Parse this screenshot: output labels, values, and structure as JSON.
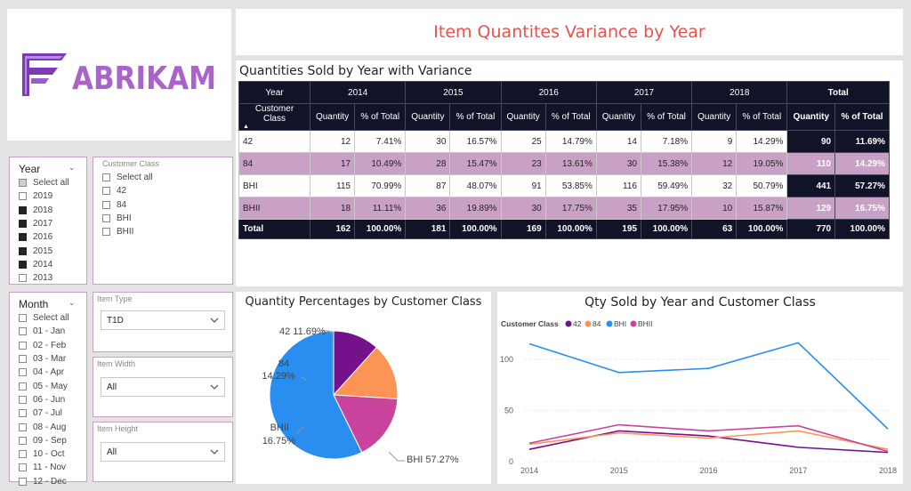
{
  "logo": {
    "text": "ABRIKAM",
    "color": "#a864c8"
  },
  "report_title": "Item Quantites Variance by Year",
  "matrix": {
    "title": "Quantities  Sold by Year with Variance",
    "year_header": "Year",
    "row_header": "Customer Class",
    "years": [
      "2014",
      "2015",
      "2016",
      "2017",
      "2018"
    ],
    "total_header": "Total",
    "qty_header": "Quantity",
    "pct_header": "% of Total",
    "rows": [
      {
        "label": "42",
        "cells": [
          "12",
          "7.41%",
          "30",
          "16.57%",
          "25",
          "14.79%",
          "14",
          "7.18%",
          "9",
          "14.29%"
        ],
        "total_qty": "90",
        "total_pct": "11.69%"
      },
      {
        "label": "84",
        "cells": [
          "17",
          "10.49%",
          "28",
          "15.47%",
          "23",
          "13.61%",
          "30",
          "15.38%",
          "12",
          "19.05%"
        ],
        "total_qty": "110",
        "total_pct": "14.29%"
      },
      {
        "label": "BHI",
        "cells": [
          "115",
          "70.99%",
          "87",
          "48.07%",
          "91",
          "53.85%",
          "116",
          "59.49%",
          "32",
          "50.79%"
        ],
        "total_qty": "441",
        "total_pct": "57.27%"
      },
      {
        "label": "BHII",
        "cells": [
          "18",
          "11.11%",
          "36",
          "19.89%",
          "30",
          "17.75%",
          "35",
          "17.95%",
          "10",
          "15.87%"
        ],
        "total_qty": "129",
        "total_pct": "16.75%"
      }
    ],
    "total_row": {
      "label": "Total",
      "cells": [
        "162",
        "100.00%",
        "181",
        "100.00%",
        "169",
        "100.00%",
        "195",
        "100.00%",
        "63",
        "100.00%"
      ],
      "total_qty": "770",
      "total_pct": "100.00%"
    },
    "colors": {
      "header_bg": "#111429",
      "band": "#c9a1c6"
    }
  },
  "year_slicer": {
    "title": "Year",
    "items": [
      {
        "label": "Select all",
        "state": "partial"
      },
      {
        "label": "2019",
        "state": "off"
      },
      {
        "label": "2018",
        "state": "on"
      },
      {
        "label": "2017",
        "state": "on"
      },
      {
        "label": "2016",
        "state": "on"
      },
      {
        "label": "2015",
        "state": "on"
      },
      {
        "label": "2014",
        "state": "on"
      },
      {
        "label": "2013",
        "state": "off"
      }
    ]
  },
  "class_slicer": {
    "title": "Customer Class",
    "items": [
      {
        "label": "Select all",
        "state": "off"
      },
      {
        "label": "42",
        "state": "off"
      },
      {
        "label": "84",
        "state": "off"
      },
      {
        "label": "BHI",
        "state": "off"
      },
      {
        "label": "BHII",
        "state": "off"
      }
    ]
  },
  "month_slicer": {
    "title": "Month",
    "items": [
      {
        "label": "Select all",
        "state": "off"
      },
      {
        "label": "01 - Jan",
        "state": "off"
      },
      {
        "label": "02 - Feb",
        "state": "off"
      },
      {
        "label": "03 - Mar",
        "state": "off"
      },
      {
        "label": "04 - Apr",
        "state": "off"
      },
      {
        "label": "05 - May",
        "state": "off"
      },
      {
        "label": "06 - Jun",
        "state": "off"
      },
      {
        "label": "07 - Jul",
        "state": "off"
      },
      {
        "label": "08 - Aug",
        "state": "off"
      },
      {
        "label": "09 - Sep",
        "state": "off"
      },
      {
        "label": "10 - Oct",
        "state": "off"
      },
      {
        "label": "11 - Nov",
        "state": "off"
      },
      {
        "label": "12 - Dec",
        "state": "off"
      }
    ]
  },
  "item_type": {
    "title": "Item Type",
    "value": "T1D"
  },
  "item_width": {
    "title": "Item Width",
    "value": "All"
  },
  "item_height": {
    "title": "Item Height",
    "value": "All"
  },
  "chart_data": [
    {
      "type": "pie",
      "title": "Quantity Percentages by Customer Class",
      "categories": [
        "42",
        "84",
        "BHII",
        "BHI"
      ],
      "values": [
        90,
        110,
        129,
        441
      ],
      "labels": [
        "42 11.69%",
        "84",
        "14.29%",
        "BHII",
        "16.75%",
        "BHI 57.27%"
      ],
      "colors": [
        "#74118b",
        "#fc9455",
        "#c9449c",
        "#2a8ef0"
      ]
    },
    {
      "type": "line",
      "title": "Qty Sold by Year and Customer Class",
      "legend_title": "Customer Class",
      "legend_placement": "top-left",
      "x": [
        "2014",
        "2015",
        "2016",
        "2017",
        "2018"
      ],
      "yticks": [
        "0",
        "50",
        "100"
      ],
      "ylim": [
        0,
        125
      ],
      "series": [
        {
          "name": "42",
          "color": "#74118b",
          "values": [
            12,
            30,
            25,
            14,
            9
          ]
        },
        {
          "name": "84",
          "color": "#fc9455",
          "values": [
            17,
            28,
            23,
            30,
            12
          ]
        },
        {
          "name": "BHI",
          "color": "#2a8ef0",
          "values": [
            115,
            87,
            91,
            116,
            32
          ]
        },
        {
          "name": "BHII",
          "color": "#c9449c",
          "values": [
            18,
            36,
            30,
            35,
            10
          ]
        }
      ]
    }
  ]
}
